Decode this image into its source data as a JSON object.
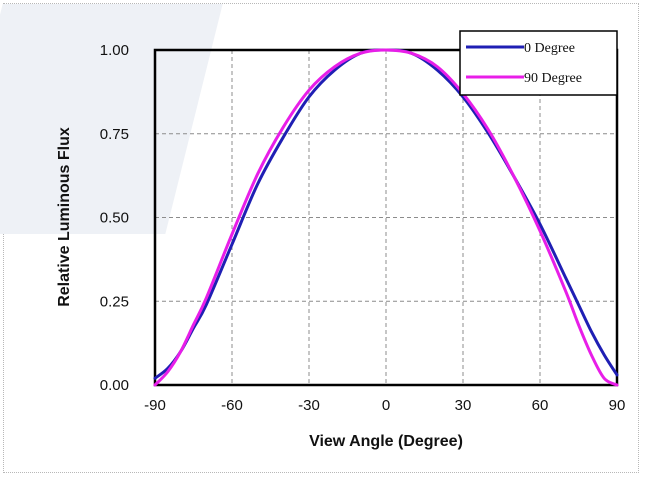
{
  "chart_data": {
    "type": "line",
    "title": "",
    "xlabel": "View Angle (Degree)",
    "ylabel": "Relative Luminous Flux",
    "xlim": [
      -90,
      90
    ],
    "ylim": [
      0,
      1
    ],
    "x_ticks": [
      "-90",
      "-60",
      "-30",
      "0",
      "30",
      "60",
      "90"
    ],
    "y_ticks": [
      "0.00",
      "0.25",
      "0.50",
      "0.75",
      "1.00"
    ],
    "grid": true,
    "legend_position": "top-right",
    "series": [
      {
        "name": "0 Degree",
        "color": "#1f1fb4",
        "x": [
          -90,
          -85,
          -80,
          -75,
          -70,
          -60,
          -50,
          -40,
          -30,
          -20,
          -10,
          0,
          10,
          20,
          30,
          40,
          50,
          60,
          70,
          75,
          80,
          85,
          90
        ],
        "y": [
          0.02,
          0.05,
          0.1,
          0.17,
          0.24,
          0.42,
          0.6,
          0.74,
          0.86,
          0.94,
          0.99,
          1.0,
          0.99,
          0.94,
          0.86,
          0.75,
          0.62,
          0.48,
          0.32,
          0.24,
          0.16,
          0.09,
          0.03
        ]
      },
      {
        "name": "90 Degree",
        "color": "#e81ee8",
        "x": [
          -90,
          -85,
          -80,
          -75,
          -70,
          -60,
          -50,
          -40,
          -30,
          -20,
          -10,
          0,
          10,
          20,
          30,
          40,
          50,
          60,
          70,
          75,
          80,
          85,
          90
        ],
        "y": [
          0.0,
          0.04,
          0.1,
          0.18,
          0.26,
          0.45,
          0.63,
          0.77,
          0.88,
          0.95,
          0.99,
          1.0,
          0.99,
          0.95,
          0.87,
          0.76,
          0.62,
          0.46,
          0.28,
          0.18,
          0.09,
          0.02,
          0.0
        ]
      }
    ]
  }
}
